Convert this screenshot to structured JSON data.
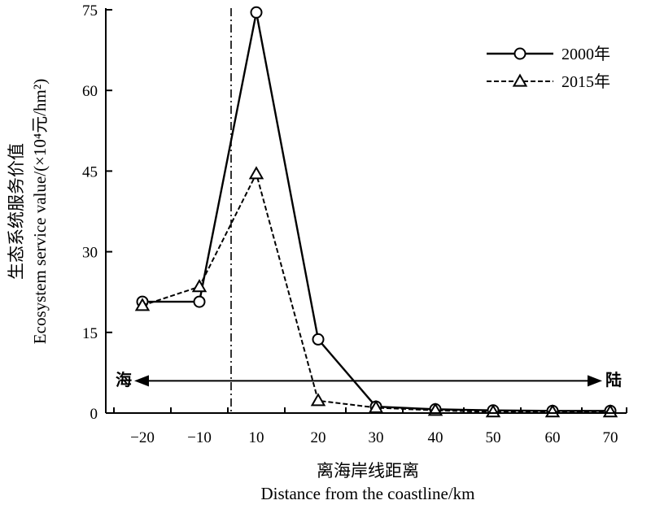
{
  "chart_data": {
    "type": "line",
    "title": "",
    "xlabel_cn": "离海岸线距离",
    "xlabel_en": "Distance from the coastline/km",
    "ylabel_cn": "生态系统服务价值",
    "ylabel_en": "Ecosystem service value/(×10⁴元/hm²)",
    "x_ticks": [
      -20,
      -10,
      10,
      20,
      30,
      40,
      50,
      60,
      70
    ],
    "y_ticks": [
      0,
      15,
      30,
      45,
      60,
      75
    ],
    "ylim": [
      0,
      75
    ],
    "coastline_marker": "dash-dot vertical line between -10 and 10",
    "arrow_left_label": "海",
    "arrow_right_label": "陆",
    "arrow_y_value": 6,
    "legend_position": "top-right",
    "series": [
      {
        "name": "2000年",
        "line_style": "solid",
        "marker": "circle",
        "segments": [
          [
            [
              -20,
              20.7
            ],
            [
              -10,
              20.7
            ]
          ],
          [
            [
              -10,
              20.7
            ],
            [
              10,
              74.5
            ],
            [
              20,
              13.7
            ],
            [
              30,
              1.2
            ],
            [
              40,
              0.7
            ],
            [
              50,
              0.5
            ],
            [
              60,
              0.4
            ],
            [
              70,
              0.4
            ]
          ]
        ],
        "points": [
          [
            -20,
            20.7
          ],
          [
            -10,
            20.7
          ],
          [
            10,
            74.5
          ],
          [
            20,
            13.7
          ],
          [
            30,
            1.2
          ],
          [
            40,
            0.7
          ],
          [
            50,
            0.5
          ],
          [
            60,
            0.4
          ],
          [
            70,
            0.4
          ]
        ]
      },
      {
        "name": "2015年",
        "line_style": "dashed",
        "marker": "triangle",
        "segments": [
          [
            [
              -20,
              20.0
            ],
            [
              -10,
              23.5
            ],
            [
              10,
              44.5
            ],
            [
              20,
              2.3
            ],
            [
              30,
              1.0
            ],
            [
              40,
              0.5
            ],
            [
              50,
              0.2
            ],
            [
              60,
              0.2
            ],
            [
              70,
              0.2
            ]
          ]
        ],
        "points": [
          [
            -20,
            20.0
          ],
          [
            -10,
            23.5
          ],
          [
            10,
            44.5
          ],
          [
            20,
            2.3
          ],
          [
            30,
            1.0
          ],
          [
            40,
            0.5
          ],
          [
            50,
            0.2
          ],
          [
            60,
            0.2
          ],
          [
            70,
            0.2
          ]
        ]
      }
    ]
  }
}
